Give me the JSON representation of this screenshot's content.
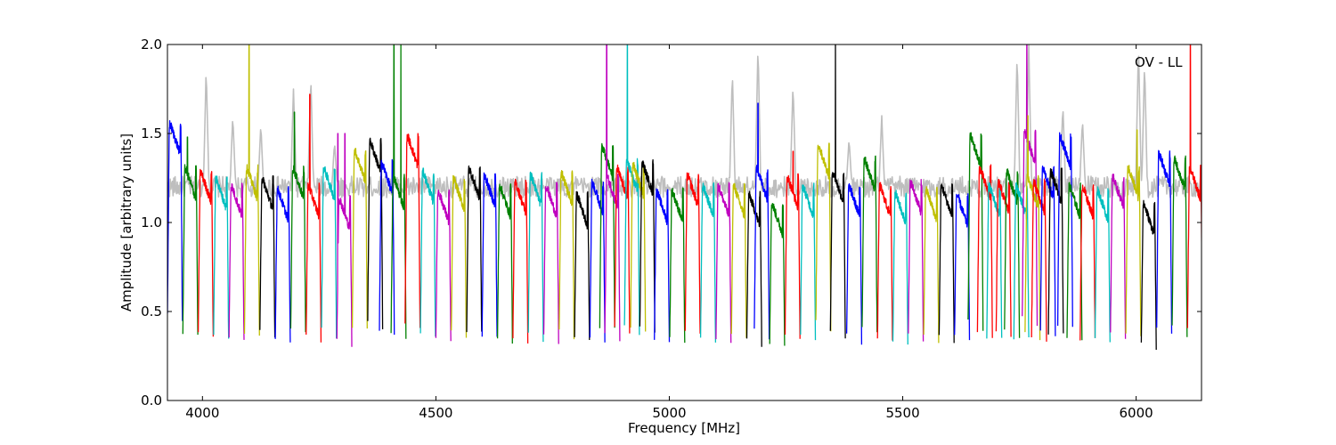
{
  "chart_data": {
    "type": "line",
    "title": "",
    "xlabel": "Frequency [MHz]",
    "ylabel": "Amplitude [arbitrary units]",
    "annotation": "OV - LL",
    "xlim": [
      3925,
      6140
    ],
    "ylim": [
      0.0,
      2.0
    ],
    "xticks": [
      4000,
      4500,
      5000,
      5500,
      6000
    ],
    "yticks": [
      0.0,
      0.5,
      1.0,
      1.5,
      2.0
    ],
    "ytick_labels": [
      "0.0",
      "0.5",
      "1.0",
      "1.5",
      "2.0"
    ],
    "grid": false,
    "legend": "none",
    "band_width_mhz": 32,
    "colors": {
      "b": "#0000ff",
      "g": "#008000",
      "r": "#ff0000",
      "c": "#00bfbf",
      "m": "#bf00bf",
      "y": "#bfbf00",
      "k": "#000000",
      "gray": "#bebebe"
    },
    "series": [
      {
        "color": "gray",
        "style": "envelope",
        "start": 3925,
        "level": 1.2,
        "peaks": [
          [
            4008,
            1.87
          ],
          [
            4065,
            1.6
          ],
          [
            4125,
            1.55
          ],
          [
            4195,
            1.75
          ],
          [
            4232,
            1.82
          ],
          [
            4283,
            1.45
          ],
          [
            5135,
            1.85
          ],
          [
            5190,
            2.0
          ],
          [
            5265,
            1.78
          ],
          [
            5385,
            1.47
          ],
          [
            5455,
            1.6
          ],
          [
            5745,
            1.95
          ],
          [
            5770,
            2.0
          ],
          [
            5843,
            1.66
          ],
          [
            5885,
            1.58
          ],
          [
            6005,
            2.0
          ],
          [
            6018,
            1.9
          ]
        ]
      },
      {
        "color": "b",
        "start": 3925,
        "level": 1.55
      },
      {
        "color": "g",
        "start": 3958,
        "level": 1.3,
        "spikes": [
          [
            3968,
            1.48
          ]
        ]
      },
      {
        "color": "r",
        "start": 3991,
        "level": 1.28
      },
      {
        "color": "c",
        "start": 4024,
        "level": 1.24
      },
      {
        "color": "m",
        "start": 4057,
        "level": 1.2
      },
      {
        "color": "y",
        "start": 4090,
        "level": 1.3,
        "spikes": [
          [
            4100,
            2.0
          ]
        ]
      },
      {
        "color": "k",
        "start": 4123,
        "level": 1.24
      },
      {
        "color": "b",
        "start": 4156,
        "level": 1.18
      },
      {
        "color": "g",
        "start": 4189,
        "level": 1.3,
        "spikes": [
          [
            4197,
            1.62
          ]
        ]
      },
      {
        "color": "r",
        "start": 4222,
        "level": 1.2,
        "spikes": [
          [
            4230,
            1.72
          ]
        ]
      },
      {
        "color": "c",
        "start": 4255,
        "level": 1.3
      },
      {
        "color": "m",
        "start": 4288,
        "level": 1.13,
        "spikes": [
          [
            4290,
            1.5
          ],
          [
            4305,
            1.5
          ]
        ]
      },
      {
        "color": "y",
        "start": 4321,
        "level": 1.4
      },
      {
        "color": "k",
        "start": 4354,
        "level": 1.45
      },
      {
        "color": "b",
        "start": 4379,
        "level": 1.33
      },
      {
        "color": "g",
        "start": 4404,
        "level": 1.25,
        "spikes": [
          [
            4410,
            2.0
          ],
          [
            4425,
            2.0
          ]
        ]
      },
      {
        "color": "r",
        "start": 4434,
        "level": 1.48
      },
      {
        "color": "c",
        "start": 4467,
        "level": 1.28
      },
      {
        "color": "m",
        "start": 4500,
        "level": 1.17
      },
      {
        "color": "y",
        "start": 4533,
        "level": 1.24
      },
      {
        "color": "k",
        "start": 4566,
        "level": 1.3
      },
      {
        "color": "b",
        "start": 4599,
        "level": 1.26
      },
      {
        "color": "g",
        "start": 4632,
        "level": 1.2
      },
      {
        "color": "r",
        "start": 4665,
        "level": 1.22
      },
      {
        "color": "c",
        "start": 4698,
        "level": 1.26
      },
      {
        "color": "m",
        "start": 4731,
        "level": 1.2
      },
      {
        "color": "y",
        "start": 4764,
        "level": 1.27
      },
      {
        "color": "k",
        "start": 4797,
        "level": 1.15
      },
      {
        "color": "b",
        "start": 4830,
        "level": 1.22
      },
      {
        "color": "g",
        "start": 4851,
        "level": 1.42
      },
      {
        "color": "m",
        "start": 4862,
        "level": 1.25,
        "spikes": [
          [
            4866,
            2.0
          ]
        ]
      },
      {
        "color": "r",
        "start": 4883,
        "level": 1.3
      },
      {
        "color": "c",
        "start": 4904,
        "level": 1.34,
        "spikes": [
          [
            4910,
            2.0
          ]
        ]
      },
      {
        "color": "y",
        "start": 4917,
        "level": 1.32
      },
      {
        "color": "k",
        "start": 4937,
        "level": 1.33
      },
      {
        "color": "b",
        "start": 4968,
        "level": 1.17
      },
      {
        "color": "g",
        "start": 5001,
        "level": 1.17
      },
      {
        "color": "r",
        "start": 5034,
        "level": 1.26
      },
      {
        "color": "c",
        "start": 5067,
        "level": 1.2
      },
      {
        "color": "m",
        "start": 5100,
        "level": 1.2
      },
      {
        "color": "y",
        "start": 5133,
        "level": 1.2
      },
      {
        "color": "k",
        "start": 5166,
        "level": 1.15
      },
      {
        "color": "b",
        "start": 5182,
        "level": 1.3,
        "spikes": [
          [
            5190,
            1.67
          ]
        ]
      },
      {
        "color": "g",
        "start": 5215,
        "level": 1.1
      },
      {
        "color": "r",
        "start": 5248,
        "level": 1.25,
        "spikes": [
          [
            5265,
            1.4
          ]
        ]
      },
      {
        "color": "c",
        "start": 5281,
        "level": 1.2
      },
      {
        "color": "y",
        "start": 5314,
        "level": 1.43
      },
      {
        "color": "k",
        "start": 5345,
        "level": 1.28,
        "spikes": [
          [
            5356,
            2.0
          ]
        ]
      },
      {
        "color": "b",
        "start": 5380,
        "level": 1.2
      },
      {
        "color": "g",
        "start": 5413,
        "level": 1.35
      },
      {
        "color": "r",
        "start": 5446,
        "level": 1.2
      },
      {
        "color": "c",
        "start": 5479,
        "level": 1.16
      },
      {
        "color": "m",
        "start": 5512,
        "level": 1.22
      },
      {
        "color": "y",
        "start": 5545,
        "level": 1.18
      },
      {
        "color": "k",
        "start": 5578,
        "level": 1.2
      },
      {
        "color": "b",
        "start": 5611,
        "level": 1.15
      },
      {
        "color": "g",
        "start": 5640,
        "level": 1.48
      },
      {
        "color": "r",
        "start": 5660,
        "level": 1.3
      },
      {
        "color": "c",
        "start": 5680,
        "level": 1.2
      },
      {
        "color": "r",
        "start": 5700,
        "level": 1.22
      },
      {
        "color": "g",
        "start": 5718,
        "level": 1.28
      },
      {
        "color": "c",
        "start": 5738,
        "level": 1.2
      },
      {
        "color": "m",
        "start": 5756,
        "level": 1.5,
        "spikes": [
          [
            5766,
            2.0
          ]
        ]
      },
      {
        "color": "y",
        "start": 5762,
        "level": 1.25,
        "spikes": [
          [
            5768,
            1.6
          ]
        ]
      },
      {
        "color": "r",
        "start": 5776,
        "level": 1.22
      },
      {
        "color": "b",
        "start": 5795,
        "level": 1.3
      },
      {
        "color": "k",
        "start": 5812,
        "level": 1.28
      },
      {
        "color": "b",
        "start": 5832,
        "level": 1.48
      },
      {
        "color": "g",
        "start": 5852,
        "level": 1.2
      },
      {
        "color": "r",
        "start": 5880,
        "level": 1.2
      },
      {
        "color": "c",
        "start": 5912,
        "level": 1.18
      },
      {
        "color": "m",
        "start": 5945,
        "level": 1.25
      },
      {
        "color": "y",
        "start": 5978,
        "level": 1.3,
        "spikes": [
          [
            6002,
            1.52
          ]
        ]
      },
      {
        "color": "k",
        "start": 6011,
        "level": 1.1
      },
      {
        "color": "b",
        "start": 6044,
        "level": 1.38
      },
      {
        "color": "g",
        "start": 6077,
        "level": 1.35
      },
      {
        "color": "r",
        "start": 6110,
        "level": 1.3,
        "spikes": [
          [
            6116,
            2.0
          ]
        ]
      }
    ]
  }
}
